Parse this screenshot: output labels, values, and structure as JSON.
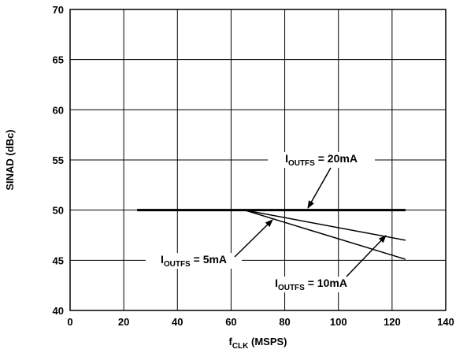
{
  "chart_data": {
    "type": "line",
    "title": "",
    "xlabel": {
      "main": "f",
      "sub": "CLK",
      "rest": " (MSPS)"
    },
    "ylabel": "SINAD (dBc)",
    "xlim": [
      0,
      140
    ],
    "ylim": [
      40,
      70
    ],
    "xticks": [
      0,
      20,
      40,
      60,
      80,
      100,
      120,
      140
    ],
    "yticks": [
      40,
      45,
      50,
      55,
      60,
      65,
      70
    ],
    "grid": true,
    "series": [
      {
        "key": "20mA",
        "x": [
          25,
          125
        ],
        "y": [
          50,
          50
        ]
      },
      {
        "key": "10mA",
        "x": [
          25,
          65,
          125
        ],
        "y": [
          50,
          50,
          47
        ]
      },
      {
        "key": "5mA",
        "x": [
          25,
          65,
          125
        ],
        "y": [
          50,
          50,
          45.1
        ]
      }
    ],
    "annotations": [
      {
        "series": "20mA",
        "main": "I",
        "sub": "OUTFS",
        "rest": " = 20mA"
      },
      {
        "series": "5mA",
        "main": "I",
        "sub": "OUTFS",
        "rest": " = 5mA"
      },
      {
        "series": "10mA",
        "main": "I",
        "sub": "OUTFS",
        "rest": " = 10mA"
      }
    ]
  }
}
